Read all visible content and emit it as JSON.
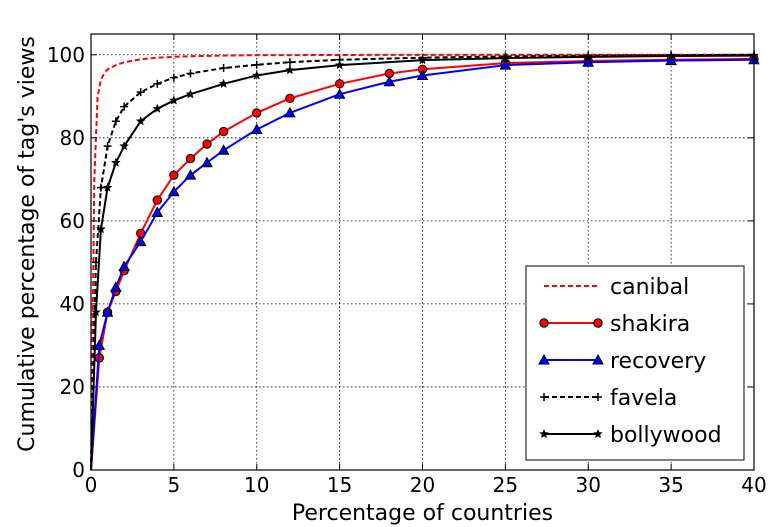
{
  "chart_data": {
    "type": "line",
    "xlabel": "Percentage of countries",
    "ylabel": "Cumulative percentage of tag's views",
    "xlim": [
      0,
      40
    ],
    "ylim": [
      0,
      105
    ],
    "xticks": [
      0,
      5,
      10,
      15,
      20,
      25,
      30,
      35,
      40
    ],
    "yticks": [
      0,
      20,
      40,
      60,
      80,
      100
    ],
    "grid": true,
    "legend_position": "lower-right",
    "series": [
      {
        "name": "canibal",
        "color": "#ff0000",
        "line_style": "dashed",
        "marker": "none",
        "x": [
          0,
          0.2,
          0.4,
          0.6,
          0.8,
          1,
          1.5,
          2,
          3,
          4,
          5,
          6,
          8,
          10,
          15,
          20,
          25,
          30,
          35,
          40
        ],
        "y": [
          0,
          70,
          90,
          94,
          95.5,
          96.5,
          97.5,
          98.2,
          98.9,
          99.3,
          99.5,
          99.65,
          99.8,
          99.9,
          99.95,
          99.98,
          99.99,
          100,
          100,
          100
        ]
      },
      {
        "name": "shakira",
        "color": "#ff0000",
        "line_style": "solid",
        "marker": "circle",
        "x": [
          0,
          0.5,
          1,
          1.5,
          2,
          3,
          4,
          5,
          6,
          7,
          8,
          10,
          12,
          15,
          18,
          20,
          25,
          30,
          35,
          40
        ],
        "y": [
          0,
          27,
          38,
          43,
          48,
          57,
          65,
          71,
          75,
          78.5,
          81.5,
          86,
          89.5,
          93,
          95.5,
          96.5,
          98,
          98.5,
          98.8,
          99
        ]
      },
      {
        "name": "recovery",
        "color": "#0000ff",
        "line_style": "solid",
        "marker": "triangle",
        "x": [
          0,
          0.5,
          1,
          1.5,
          2,
          3,
          4,
          5,
          6,
          7,
          8,
          10,
          12,
          15,
          18,
          20,
          25,
          30,
          35,
          40
        ],
        "y": [
          0,
          30,
          38,
          44,
          49,
          55,
          62,
          67,
          71,
          74,
          77,
          82,
          86,
          90.5,
          93.5,
          95,
          97.5,
          98.2,
          98.6,
          98.8
        ]
      },
      {
        "name": "favela",
        "color": "#000000",
        "line_style": "dashed",
        "marker": "plus",
        "x": [
          0,
          0.3,
          0.6,
          1,
          1.5,
          2,
          3,
          4,
          5,
          6,
          8,
          10,
          12,
          15,
          20,
          25,
          30,
          35,
          40
        ],
        "y": [
          0,
          50,
          68,
          78,
          84,
          87.5,
          91,
          93,
          94.5,
          95.5,
          96.8,
          97.6,
          98.2,
          98.8,
          99.3,
          99.6,
          99.8,
          99.9,
          100
        ]
      },
      {
        "name": "bollywood",
        "color": "#000000",
        "line_style": "solid",
        "marker": "star",
        "x": [
          0,
          0.3,
          0.6,
          1,
          1.5,
          2,
          3,
          4,
          5,
          6,
          8,
          10,
          12,
          15,
          20,
          25,
          30,
          35,
          40
        ],
        "y": [
          0,
          38,
          58,
          68,
          74,
          78,
          84,
          87,
          89,
          90.5,
          93,
          95,
          96.3,
          97.5,
          98.7,
          99.2,
          99.5,
          99.7,
          99.8
        ]
      }
    ]
  }
}
